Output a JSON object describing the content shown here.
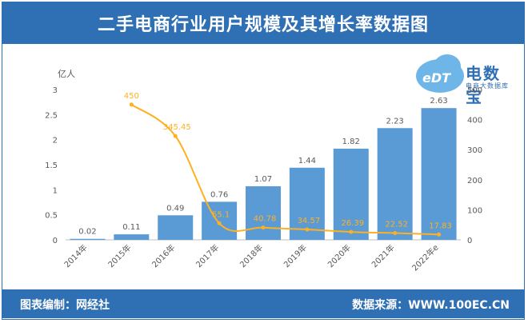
{
  "header": {
    "title": "二手电商行业用户规模及其增长率数据图"
  },
  "footer": {
    "left": "图表编制：网经社",
    "right": "数据来源：WWW.100EC.CN"
  },
  "logo": {
    "mark": "eDT",
    "name": "电数宝",
    "subtitle": "电商大数据库"
  },
  "colors": {
    "brand": "#2f6fb4",
    "bar": "#5b9bd5",
    "line": "#ffb020",
    "axis_text": "#595959",
    "grid": "#d9d9d9"
  },
  "chart_data": {
    "type": "bar",
    "title": "",
    "ylabel": "亿人",
    "categories": [
      "2014年",
      "2015年",
      "2016年",
      "2017年",
      "2018年",
      "2019年",
      "2020年",
      "2021年",
      "2022年e"
    ],
    "series": [
      {
        "axis": "left",
        "type": "bar",
        "values": [
          0.02,
          0.11,
          0.49,
          0.76,
          1.07,
          1.44,
          1.82,
          2.23,
          2.63
        ]
      },
      {
        "axis": "right",
        "type": "line",
        "values": [
          null,
          450,
          345.45,
          55.1,
          40.78,
          34.57,
          26.39,
          22.52,
          17.83
        ]
      }
    ],
    "ylim": [
      0,
      3
    ],
    "yticks": [
      "0",
      "0.5",
      "1",
      "1.5",
      "2",
      "2.5",
      "3"
    ],
    "y2lim": [
      0,
      500
    ],
    "y2ticks": [
      "0",
      "100",
      "200",
      "300",
      "400",
      "500"
    ],
    "bar_labels": [
      "0.02",
      "0.11",
      "0.49",
      "0.76",
      "1.07",
      "1.44",
      "1.82",
      "2.23",
      "2.63"
    ],
    "line_labels": [
      "",
      "450",
      "345.45",
      "55.1",
      "40.78",
      "34.57",
      "26.39",
      "22.52",
      "17.83"
    ],
    "grid": false
  }
}
